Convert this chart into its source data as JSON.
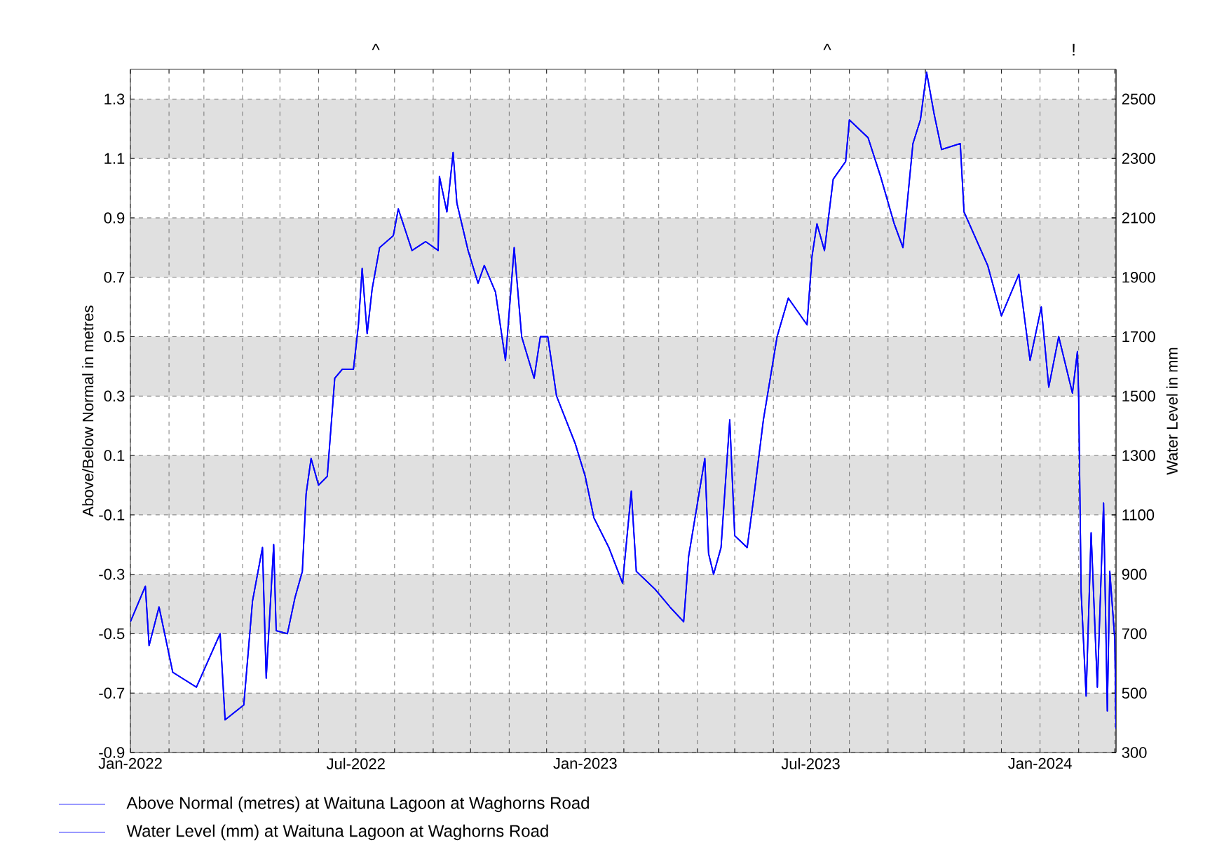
{
  "chart_data": {
    "type": "line",
    "ylabel": "Above/Below Normal in metres",
    "y2label": "Water Level in mm",
    "x": [
      "2022-01-01",
      "2022-01-13",
      "2022-01-16",
      "2022-01-24",
      "2022-02-04",
      "2022-02-23",
      "2022-03-14",
      "2022-03-18",
      "2022-04-02",
      "2022-04-09",
      "2022-04-17",
      "2022-04-20",
      "2022-04-26",
      "2022-04-28",
      "2022-05-07",
      "2022-05-13",
      "2022-05-19",
      "2022-05-22",
      "2022-05-26",
      "2022-06-01",
      "2022-06-08",
      "2022-06-14",
      "2022-06-20",
      "2022-06-29",
      "2022-07-03",
      "2022-07-06",
      "2022-07-10",
      "2022-07-14",
      "2022-07-20",
      "2022-07-31",
      "2022-08-04",
      "2022-08-15",
      "2022-08-26",
      "2022-09-05",
      "2022-09-06",
      "2022-09-12",
      "2022-09-17",
      "2022-09-20",
      "2022-09-29",
      "2022-10-07",
      "2022-10-12",
      "2022-10-21",
      "2022-10-29",
      "2022-11-05",
      "2022-11-11",
      "2022-11-21",
      "2022-11-26",
      "2022-12-02",
      "2022-12-09",
      "2022-12-24",
      "2023-01-01",
      "2023-01-08",
      "2023-01-20",
      "2023-01-31",
      "2023-02-07",
      "2023-02-11",
      "2023-02-26",
      "2023-03-10",
      "2023-03-21",
      "2023-03-25",
      "2023-04-07",
      "2023-04-10",
      "2023-04-14",
      "2023-04-20",
      "2023-04-27",
      "2023-05-01",
      "2023-05-11",
      "2023-05-16",
      "2023-05-24",
      "2023-06-04",
      "2023-06-13",
      "2023-06-28",
      "2023-07-02",
      "2023-07-06",
      "2023-07-12",
      "2023-07-19",
      "2023-07-29",
      "2023-08-01",
      "2023-08-16",
      "2023-08-26",
      "2023-09-06",
      "2023-09-13",
      "2023-09-21",
      "2023-09-27",
      "2023-10-02",
      "2023-10-08",
      "2023-10-14",
      "2023-10-29",
      "2023-11-01",
      "2023-11-20",
      "2023-12-01",
      "2023-12-15",
      "2023-12-24",
      "2024-01-02",
      "2024-01-08",
      "2024-01-16",
      "2024-01-27",
      "2024-01-31",
      "2024-02-01",
      "2024-02-03",
      "2024-02-07",
      "2024-02-11",
      "2024-02-16",
      "2024-02-21",
      "2024-02-24",
      "2024-02-26",
      "2024-03-01",
      "2024-03-02"
    ],
    "series": [
      {
        "name": "Above Normal (metres) at Waituna Lagoon at Waghorns Road",
        "color": "#0000ff",
        "values": [
          -0.46,
          -0.34,
          -0.54,
          -0.41,
          -0.63,
          -0.68,
          -0.5,
          -0.79,
          -0.74,
          -0.39,
          -0.21,
          -0.65,
          -0.2,
          -0.49,
          -0.5,
          -0.38,
          -0.29,
          -0.03,
          0.09,
          0.0,
          0.03,
          0.36,
          0.39,
          0.39,
          0.54,
          0.73,
          0.51,
          0.66,
          0.8,
          0.84,
          0.93,
          0.79,
          0.82,
          0.79,
          1.04,
          0.92,
          1.12,
          0.95,
          0.79,
          0.68,
          0.74,
          0.65,
          0.42,
          0.8,
          0.5,
          0.36,
          0.5,
          0.5,
          0.3,
          0.14,
          0.03,
          -0.11,
          -0.21,
          -0.33,
          -0.02,
          -0.29,
          -0.35,
          -0.41,
          -0.46,
          -0.24,
          0.09,
          -0.23,
          -0.3,
          -0.21,
          0.22,
          -0.17,
          -0.21,
          -0.05,
          0.22,
          0.5,
          0.63,
          0.54,
          0.77,
          0.88,
          0.79,
          1.03,
          1.09,
          1.23,
          1.17,
          1.04,
          0.88,
          0.8,
          1.15,
          1.23,
          1.39,
          1.25,
          1.13,
          1.15,
          0.92,
          0.74,
          0.57,
          0.71,
          0.42,
          0.6,
          0.33,
          0.5,
          0.31,
          0.45,
          0.3,
          -0.36,
          -0.71,
          -0.16,
          -0.68,
          -0.06,
          -0.76,
          -0.29,
          -0.52,
          -0.82
        ]
      },
      {
        "name": "Water Level (mm) at Waituna Lagoon at Waghorns Road",
        "color": "#0000ff",
        "axis": "y2",
        "values": [
          740,
          860,
          660,
          790,
          570,
          520,
          700,
          410,
          460,
          810,
          990,
          550,
          1000,
          710,
          700,
          820,
          910,
          1170,
          1290,
          1200,
          1230,
          1560,
          1590,
          1590,
          1740,
          1930,
          1710,
          1860,
          2000,
          2040,
          2130,
          1990,
          2020,
          1990,
          2240,
          2120,
          2320,
          2150,
          1990,
          1880,
          1940,
          1850,
          1620,
          2000,
          1700,
          1560,
          1700,
          1700,
          1500,
          1340,
          1230,
          1090,
          990,
          870,
          1180,
          910,
          850,
          790,
          740,
          960,
          1290,
          970,
          900,
          990,
          1420,
          1030,
          990,
          1150,
          1420,
          1700,
          1830,
          1740,
          1970,
          2080,
          1990,
          2230,
          2290,
          2430,
          2370,
          2240,
          2080,
          2000,
          2350,
          2430,
          2590,
          2450,
          2330,
          2350,
          2120,
          1940,
          1770,
          1910,
          1620,
          1800,
          1530,
          1700,
          1510,
          1650,
          1500,
          840,
          490,
          1040,
          520,
          1140,
          440,
          910,
          680,
          380
        ]
      }
    ],
    "xlim": [
      "2022-01-01",
      "2024-03-02"
    ],
    "xticks": [
      {
        "value": "2022-01-01",
        "label": "Jan-2022"
      },
      {
        "value": "2022-02-01",
        "label": null
      },
      {
        "value": "2022-03-01",
        "label": null
      },
      {
        "value": "2022-04-01",
        "label": null
      },
      {
        "value": "2022-05-01",
        "label": null
      },
      {
        "value": "2022-06-01",
        "label": null
      },
      {
        "value": "2022-07-01",
        "label": "Jul-2022"
      },
      {
        "value": "2022-08-01",
        "label": null
      },
      {
        "value": "2022-09-01",
        "label": null
      },
      {
        "value": "2022-10-01",
        "label": null
      },
      {
        "value": "2022-11-01",
        "label": null
      },
      {
        "value": "2022-12-01",
        "label": null
      },
      {
        "value": "2023-01-01",
        "label": "Jan-2023"
      },
      {
        "value": "2023-02-01",
        "label": null
      },
      {
        "value": "2023-03-01",
        "label": null
      },
      {
        "value": "2023-04-01",
        "label": null
      },
      {
        "value": "2023-05-01",
        "label": null
      },
      {
        "value": "2023-06-01",
        "label": null
      },
      {
        "value": "2023-07-01",
        "label": "Jul-2023"
      },
      {
        "value": "2023-08-01",
        "label": null
      },
      {
        "value": "2023-09-01",
        "label": null
      },
      {
        "value": "2023-10-01",
        "label": null
      },
      {
        "value": "2023-11-01",
        "label": null
      },
      {
        "value": "2023-12-01",
        "label": null
      },
      {
        "value": "2024-01-01",
        "label": "Jan-2024"
      },
      {
        "value": "2024-02-01",
        "label": null
      },
      {
        "value": "2024-03-01",
        "label": null
      }
    ],
    "ylim": [
      -0.9,
      1.4
    ],
    "yticks": [
      -0.9,
      -0.7,
      -0.5,
      -0.3,
      -0.1,
      0.1,
      0.3,
      0.5,
      0.7,
      0.9,
      1.1,
      1.3
    ],
    "y2lim": [
      300,
      2600
    ],
    "y2ticks": [
      300,
      500,
      700,
      900,
      1100,
      1300,
      1500,
      1700,
      1900,
      2100,
      2300,
      2500
    ],
    "bands": [
      {
        "axis": "y",
        "from": 1.1,
        "to": 1.3,
        "color": "#e0e0e0"
      },
      {
        "axis": "y",
        "from": 0.7,
        "to": 0.9,
        "color": "#e0e0e0"
      },
      {
        "axis": "y",
        "from": 0.3,
        "to": 0.5,
        "color": "#e0e0e0"
      },
      {
        "axis": "y",
        "from": -0.1,
        "to": 0.1,
        "color": "#e0e0e0"
      },
      {
        "axis": "y",
        "from": -0.5,
        "to": -0.3,
        "color": "#e0e0e0"
      },
      {
        "axis": "y",
        "from": -0.9,
        "to": -0.7,
        "color": "#e0e0e0"
      }
    ],
    "annotations": [
      "^",
      "^",
      "!"
    ],
    "grid": true,
    "legend": "bottom"
  }
}
